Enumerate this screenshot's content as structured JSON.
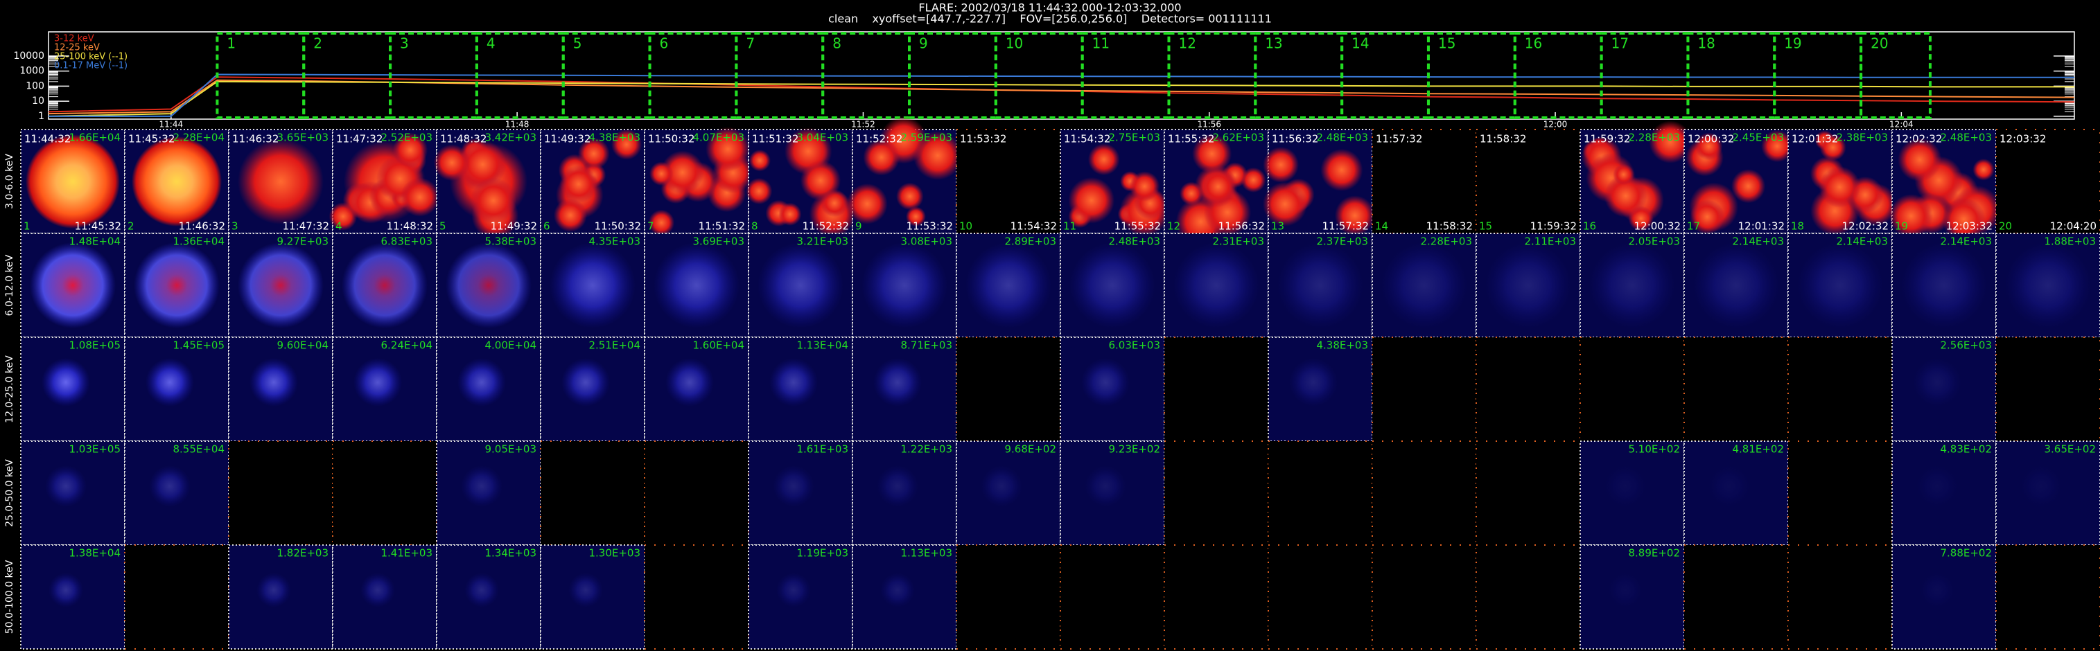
{
  "header": {
    "title": "FLARE: 2002/03/18 11:44:32.000-12:03:32.000",
    "subtitle": "clean    xyoffset=[447.7,-227.7]    FOV=[256.0,256.0]    Detectors= 001111111"
  },
  "lightcurve": {
    "type": "line",
    "log_scale": true,
    "ylim": [
      0.65,
      400000
    ],
    "yticks": [
      1,
      10,
      100,
      1000,
      10000
    ],
    "xlim": [
      "11:42:35",
      "12:06:00"
    ],
    "xticks": [
      "11:44",
      "11:48",
      "11:52",
      "11:56",
      "12:00",
      "12:04"
    ],
    "x": [
      "11:42:35",
      "11:44:00",
      "11:44:32",
      "11:45:32",
      "11:46:32",
      "11:47:32",
      "11:48:32",
      "11:49:32",
      "11:50:32",
      "11:51:32",
      "11:52:32",
      "11:53:32",
      "11:54:32",
      "11:55:32",
      "11:56:32",
      "11:57:32",
      "11:58:32",
      "11:59:32",
      "12:00:32",
      "12:01:32",
      "12:02:32",
      "12:03:32",
      "12:04:32",
      "12:06:00"
    ],
    "series": [
      {
        "name": "3-12 keV",
        "color": "#e02a1a",
        "values": [
          2,
          3,
          400,
          350,
          300,
          250,
          200,
          160,
          120,
          90,
          70,
          55,
          45,
          35,
          30,
          25,
          20,
          18,
          15,
          14,
          12,
          11,
          10,
          9
        ]
      },
      {
        "name": "12-25 keV",
        "color": "#ff8a3a",
        "values": [
          1.5,
          2,
          250,
          220,
          180,
          150,
          120,
          100,
          85,
          75,
          65,
          55,
          50,
          45,
          40,
          36,
          32,
          30,
          28,
          26,
          24,
          22,
          20,
          18
        ]
      },
      {
        "name": "25-100 keV (--1)",
        "color": "#f0e040",
        "values": [
          1,
          1.5,
          200,
          190,
          180,
          170,
          160,
          150,
          140,
          135,
          130,
          125,
          120,
          115,
          110,
          105,
          100,
          100,
          100,
          95,
          95,
          95,
          90,
          90
        ]
      },
      {
        "name": "0.1-17 MeV (--1)",
        "color": "#3a7ad8",
        "values": [
          1,
          1,
          600,
          580,
          560,
          540,
          520,
          500,
          490,
          480,
          470,
          460,
          450,
          440,
          430,
          420,
          410,
          400,
          400,
          390,
          390,
          380,
          380,
          380
        ]
      }
    ]
  },
  "columns": [
    {
      "index": "1",
      "start": "11:44:32",
      "end": "11:45:32"
    },
    {
      "index": "2",
      "start": "11:45:32",
      "end": "11:46:32"
    },
    {
      "index": "3",
      "start": "11:46:32",
      "end": "11:47:32"
    },
    {
      "index": "4",
      "start": "11:47:32",
      "end": "11:48:32"
    },
    {
      "index": "5",
      "start": "11:48:32",
      "end": "11:49:32"
    },
    {
      "index": "6",
      "start": "11:49:32",
      "end": "11:50:32"
    },
    {
      "index": "7",
      "start": "11:50:32",
      "end": "11:51:32"
    },
    {
      "index": "8",
      "start": "11:51:32",
      "end": "11:52:32"
    },
    {
      "index": "9",
      "start": "11:52:32",
      "end": "11:53:32"
    },
    {
      "index": "10",
      "start": "11:53:32",
      "end": "11:54:32"
    },
    {
      "index": "11",
      "start": "11:54:32",
      "end": "11:55:32"
    },
    {
      "index": "12",
      "start": "11:55:32",
      "end": "11:56:32"
    },
    {
      "index": "13",
      "start": "11:56:32",
      "end": "11:57:32"
    },
    {
      "index": "14",
      "start": "11:57:32",
      "end": "11:58:32"
    },
    {
      "index": "15",
      "start": "11:58:32",
      "end": "11:59:32"
    },
    {
      "index": "16",
      "start": "11:59:32",
      "end": "12:00:32"
    },
    {
      "index": "17",
      "start": "12:00:32",
      "end": "12:01:32"
    },
    {
      "index": "18",
      "start": "12:01:32",
      "end": "12:02:32"
    },
    {
      "index": "19",
      "start": "12:02:32",
      "end": "12:03:32"
    },
    {
      "index": "20",
      "start": "12:03:32",
      "end": "12:04:20"
    }
  ],
  "rows": [
    {
      "label": "3.0-6.0 keV",
      "peaks": [
        "1.66E+04",
        "2.28E+04",
        "3.65E+03",
        "2.52E+03",
        "3.42E+03",
        "4.38E+03",
        "4.07E+03",
        "3.04E+03",
        "2.59E+03",
        null,
        "2.75E+03",
        "2.62E+03",
        "2.48E+03",
        null,
        null,
        "2.28E+03",
        "2.45E+03",
        "2.38E+03",
        "2.48E+03",
        null
      ]
    },
    {
      "label": "6.0-12.0 keV",
      "peaks": [
        "1.48E+04",
        "1.36E+04",
        "9.27E+03",
        "6.83E+03",
        "5.38E+03",
        "4.35E+03",
        "3.69E+03",
        "3.21E+03",
        "3.08E+03",
        "2.89E+03",
        "2.48E+03",
        "2.31E+03",
        "2.37E+03",
        "2.28E+03",
        "2.11E+03",
        "2.05E+03",
        "2.14E+03",
        "2.14E+03",
        "2.14E+03",
        "1.88E+03"
      ]
    },
    {
      "label": "12.0-25.0 keV",
      "peaks": [
        "1.08E+05",
        "1.45E+05",
        "9.60E+04",
        "6.24E+04",
        "4.00E+04",
        "2.51E+04",
        "1.60E+04",
        "1.13E+04",
        "8.71E+03",
        null,
        "6.03E+03",
        null,
        "4.38E+03",
        null,
        null,
        null,
        null,
        null,
        "2.56E+03",
        null
      ]
    },
    {
      "label": "25.0-50.0 keV",
      "peaks": [
        "1.03E+05",
        "8.55E+04",
        null,
        null,
        "9.05E+03",
        null,
        null,
        "1.61E+03",
        "1.22E+03",
        "9.68E+02",
        "9.23E+02",
        null,
        null,
        null,
        null,
        "5.10E+02",
        "4.81E+02",
        null,
        "4.83E+02",
        "3.65E+02"
      ]
    },
    {
      "label": "50.0-100.0 keV",
      "peaks": [
        "1.38E+04",
        null,
        "1.82E+03",
        "1.41E+03",
        "1.34E+03",
        "1.30E+03",
        null,
        "1.19E+03",
        "1.13E+03",
        null,
        null,
        null,
        null,
        null,
        null,
        "8.89E+02",
        null,
        null,
        "7.88E+02",
        null
      ]
    }
  ]
}
